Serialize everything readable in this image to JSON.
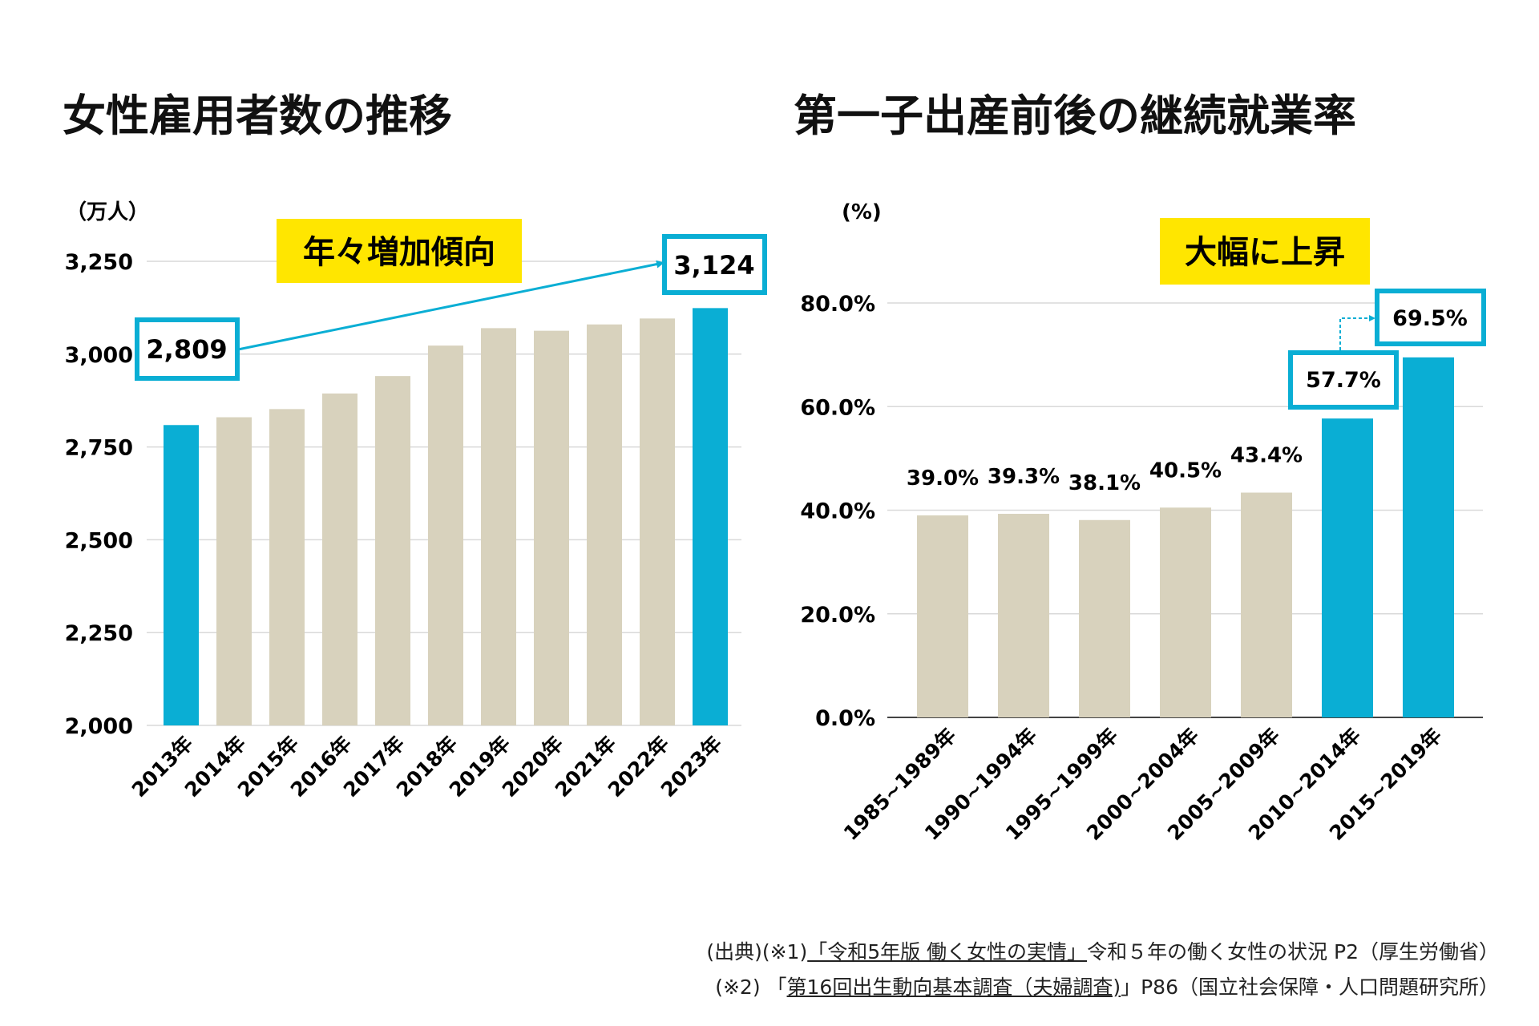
{
  "left_chart": {
    "title": "女性雇用者数の推移",
    "unit": "（万人）",
    "highlight": "年々増加傾向",
    "callout_start": "2,809",
    "callout_end": "3,124"
  },
  "right_chart": {
    "title": "第一子出産前後の継続就業率",
    "unit": "(%)",
    "highlight": "大幅に上昇",
    "callout_prev": "57.7%",
    "callout_latest": "69.5%"
  },
  "colors": {
    "accent": "#0aaed4",
    "bar": "#d8d2bd",
    "highlight_bg": "#ffe600",
    "grid": "#d9d9d9"
  },
  "chart_data": [
    {
      "type": "bar",
      "title": "女性雇用者数の推移",
      "ylabel": "（万人）",
      "ylim": [
        2000,
        3250
      ],
      "yticks": [
        "2,000",
        "2,250",
        "2,500",
        "2,750",
        "3,000",
        "3,250"
      ],
      "categories": [
        "2013年",
        "2014年",
        "2015年",
        "2016年",
        "2017年",
        "2018年",
        "2019年",
        "2020年",
        "2021年",
        "2022年",
        "2023年"
      ],
      "values": [
        2809,
        2830,
        2852,
        2894,
        2941,
        3023,
        3070,
        3063,
        3080,
        3096,
        3124
      ],
      "highlighted": [
        0,
        10
      ],
      "grid": true
    },
    {
      "type": "bar",
      "title": "第一子出産前後の継続就業率",
      "ylabel": "(%)",
      "ylim": [
        0,
        80
      ],
      "yticks": [
        "0.0%",
        "20.0%",
        "40.0%",
        "60.0%",
        "80.0%"
      ],
      "categories": [
        "1985~1989年",
        "1990~1994年",
        "1995~1999年",
        "2000~2004年",
        "2005~2009年",
        "2010~2014年",
        "2015~2019年"
      ],
      "values": [
        39.0,
        39.3,
        38.1,
        40.5,
        43.4,
        57.7,
        69.5
      ],
      "labels": [
        "39.0%",
        "39.3%",
        "38.1%",
        "40.5%",
        "43.4%",
        "57.7%",
        "69.5%"
      ],
      "highlighted": [
        5,
        6
      ],
      "grid": true
    }
  ],
  "source": {
    "line1_prefix": "(出典)(※1)",
    "line1_link": "「令和5年版 働く女性の実情」",
    "line1_suffix": "令和５年の働く女性の状況 P2（厚生労働省）",
    "line2_prefix": "(※2) 「",
    "line2_link": "第16回出生動向基本調査（夫婦調査)",
    "line2_suffix": "」P86（国立社会保障・人口問題研究所）"
  }
}
